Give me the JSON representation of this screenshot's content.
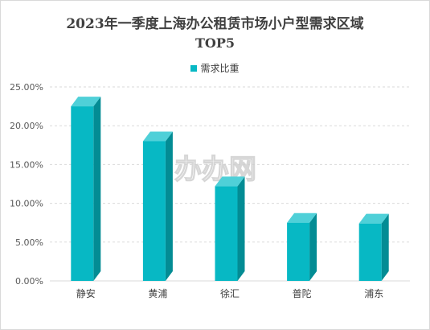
{
  "chart_data": {
    "type": "bar",
    "title_line1": "2023年一季度上海办公租赁市场小户型需求区域",
    "title_line2": "TOP5",
    "categories": [
      "静安",
      "黄浦",
      "徐汇",
      "普陀",
      "浦东"
    ],
    "series": [
      {
        "name": "需求比重",
        "values": [
          22.5,
          18.0,
          12.2,
          7.5,
          7.4
        ],
        "color": "#07B8C4"
      }
    ],
    "y_ticks": [
      "0.00%",
      "5.00%",
      "10.00%",
      "15.00%",
      "20.00%",
      "25.00%"
    ],
    "ylim": [
      0,
      25
    ],
    "legend_position": "top",
    "grid": true,
    "bar_style": "3d",
    "watermark": "办办网"
  }
}
